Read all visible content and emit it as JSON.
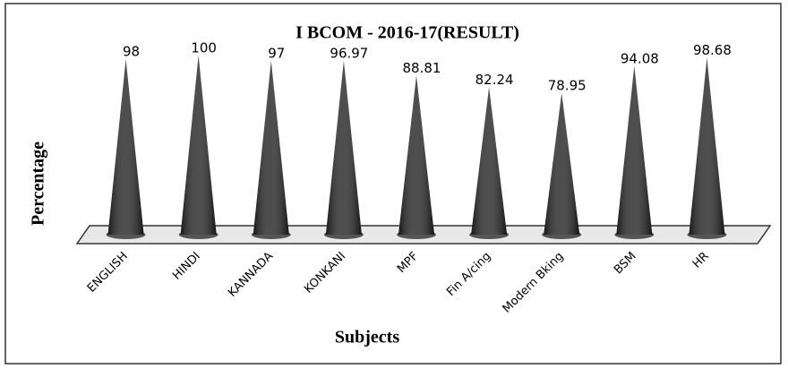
{
  "chart_data": {
    "type": "cone",
    "title": "I BCOM  - 2016-17(RESULT)",
    "x_label": "Subjects",
    "y_label": "Percentage",
    "categories": [
      "ENGLISH",
      "HINDI",
      "KANNADA",
      "KONKANI",
      "MPF",
      "Fin A/cing",
      "Modern Bking",
      "BSM",
      "HR"
    ],
    "values": [
      98,
      100,
      97,
      96.97,
      88.81,
      82.24,
      78.95,
      94.08,
      98.68
    ],
    "color": "#262626"
  }
}
